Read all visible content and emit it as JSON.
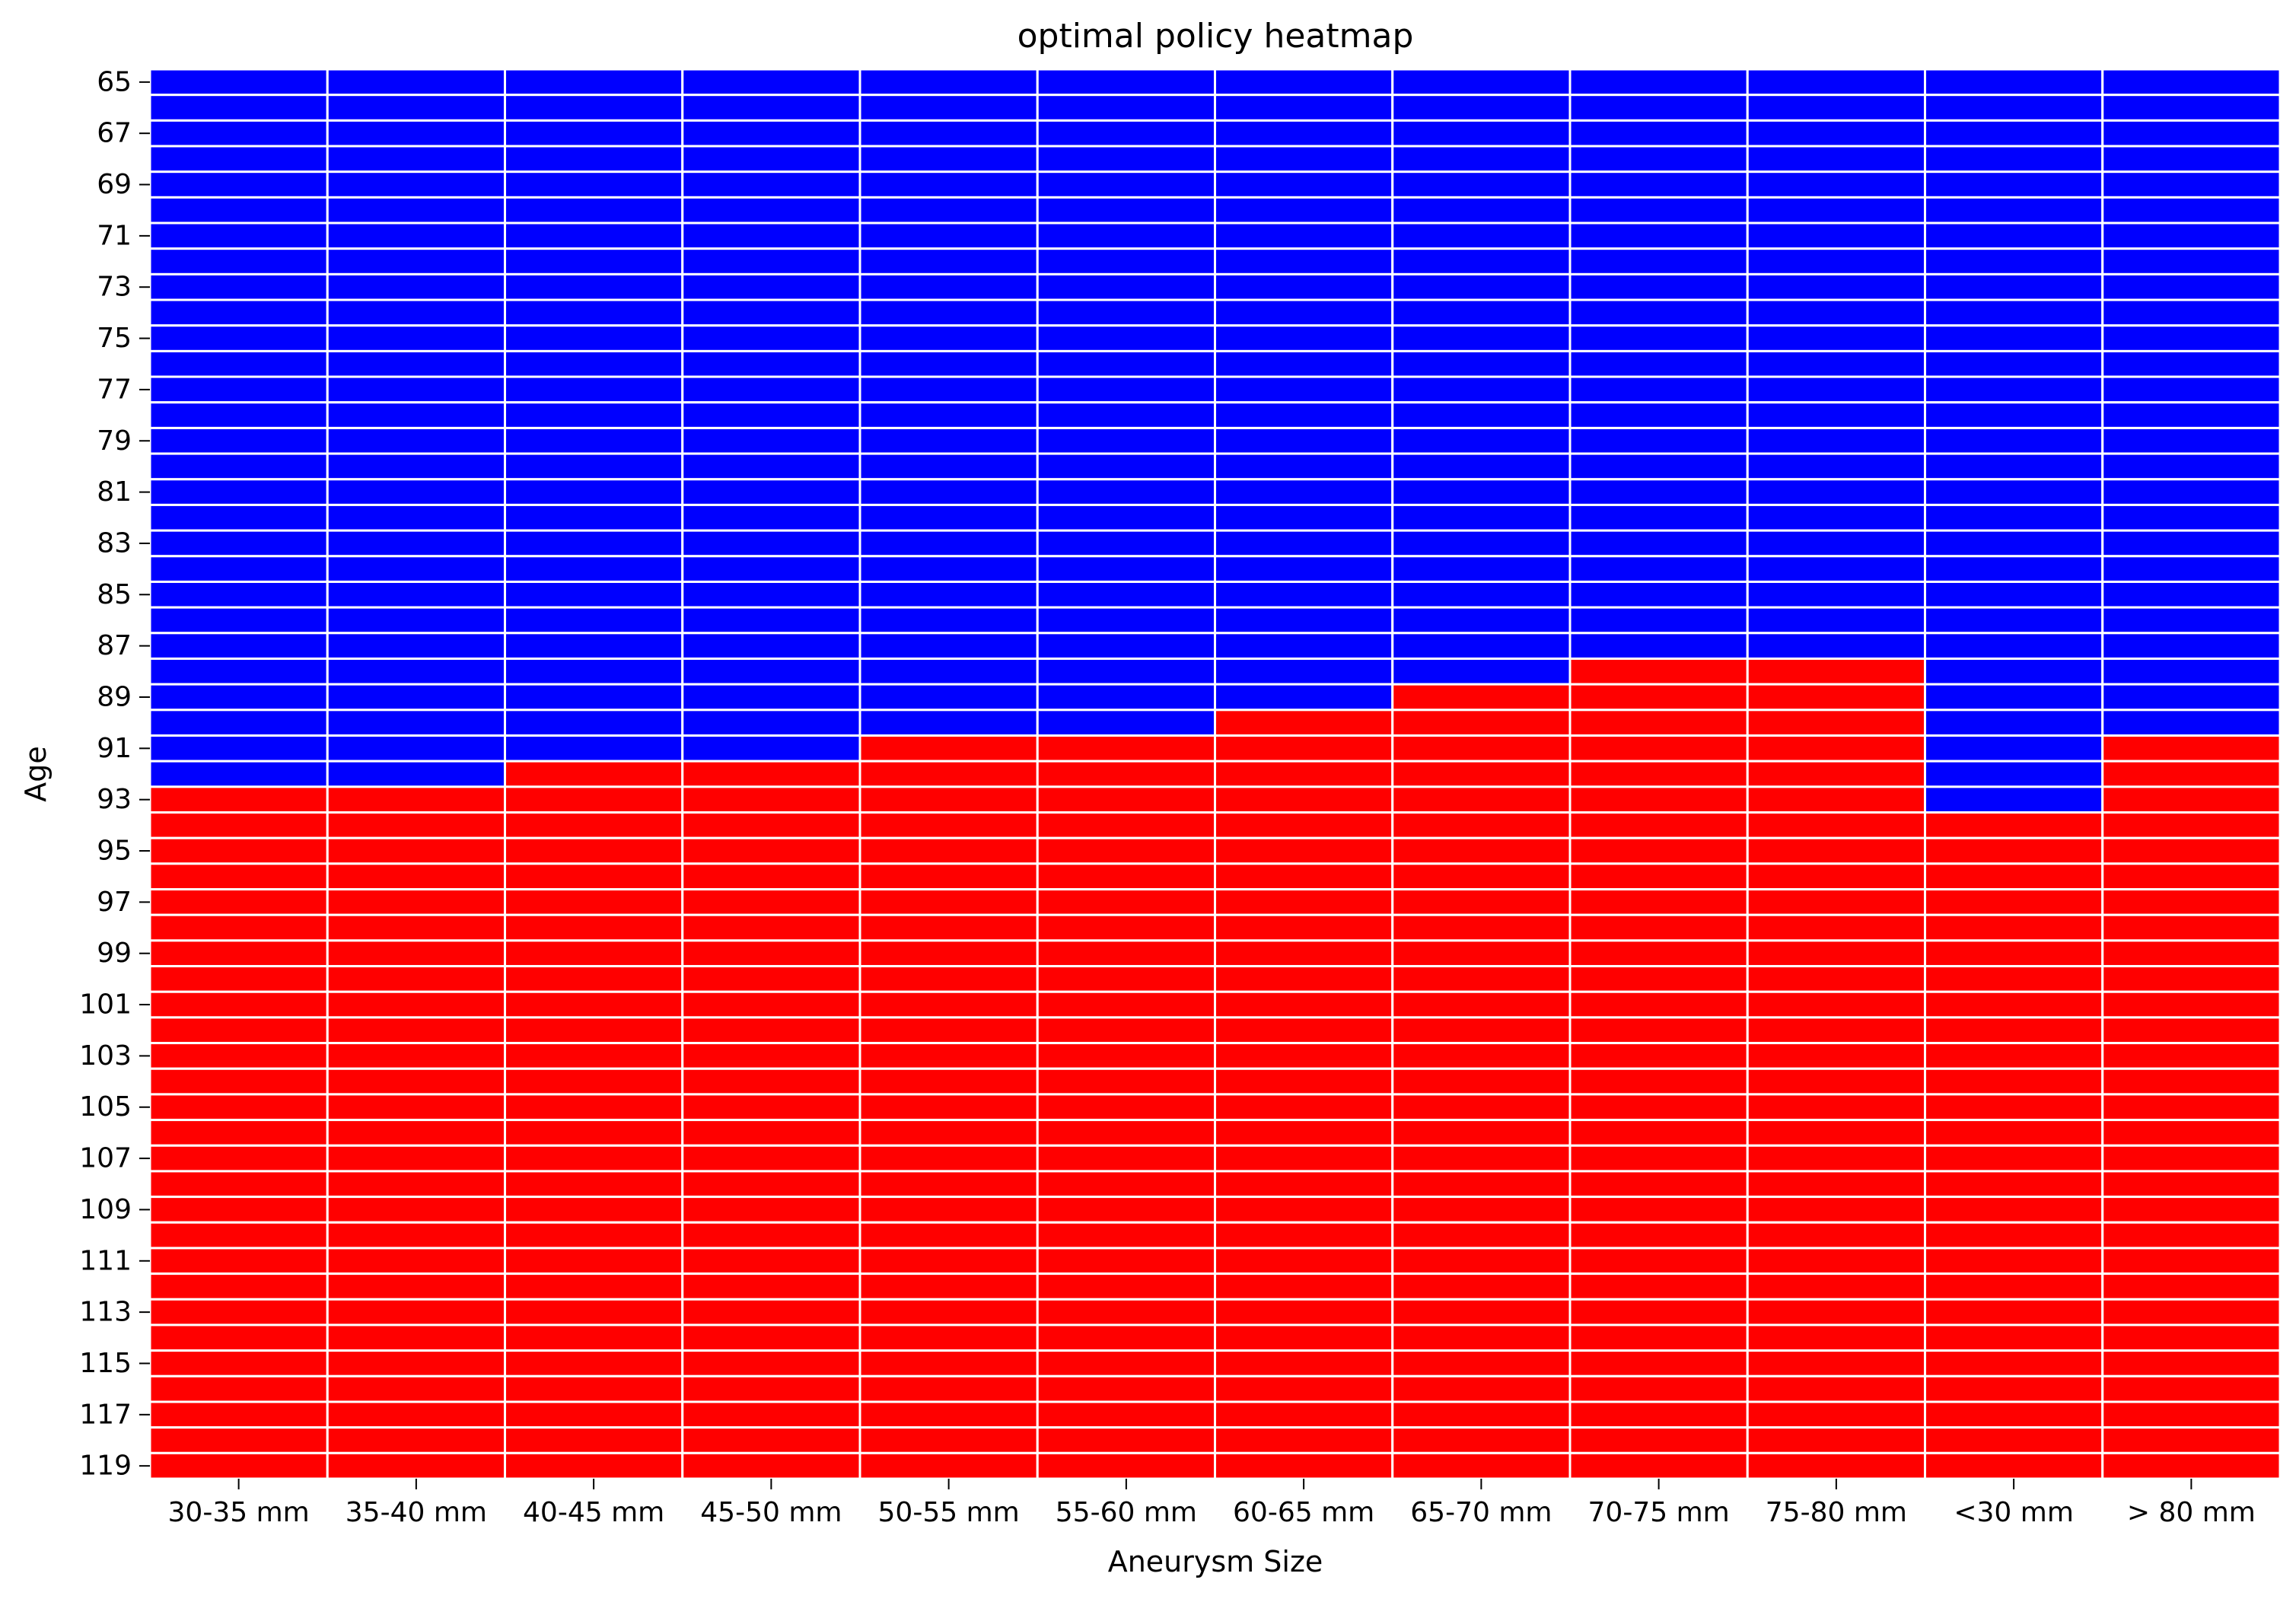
{
  "chart_data": {
    "type": "heatmap",
    "title": "optimal policy heatmap",
    "xlabel": "Aneurysm Size",
    "ylabel": "Age",
    "categories": [
      "30-35 mm",
      "35-40 mm",
      "40-45 mm",
      "45-50 mm",
      "50-55 mm",
      "55-60 mm",
      "60-65 mm",
      "65-70 mm",
      "70-75 mm",
      "75-80 mm",
      "<30 mm",
      "> 80 mm"
    ],
    "y_range": [
      65,
      120
    ],
    "yticks": [
      "65",
      "67",
      "69",
      "71",
      "73",
      "75",
      "77",
      "79",
      "81",
      "83",
      "85",
      "87",
      "89",
      "91",
      "93",
      "95",
      "97",
      "99",
      "101",
      "103",
      "105",
      "107",
      "109",
      "111",
      "113",
      "115",
      "117",
      "119"
    ],
    "first_red_age": [
      93,
      93,
      92,
      92,
      91,
      91,
      90,
      89,
      88,
      88,
      94,
      91
    ],
    "colors": {
      "below": "#0000ff",
      "from": "#ff0000",
      "grid": "#ffffff"
    },
    "legend": "none"
  }
}
